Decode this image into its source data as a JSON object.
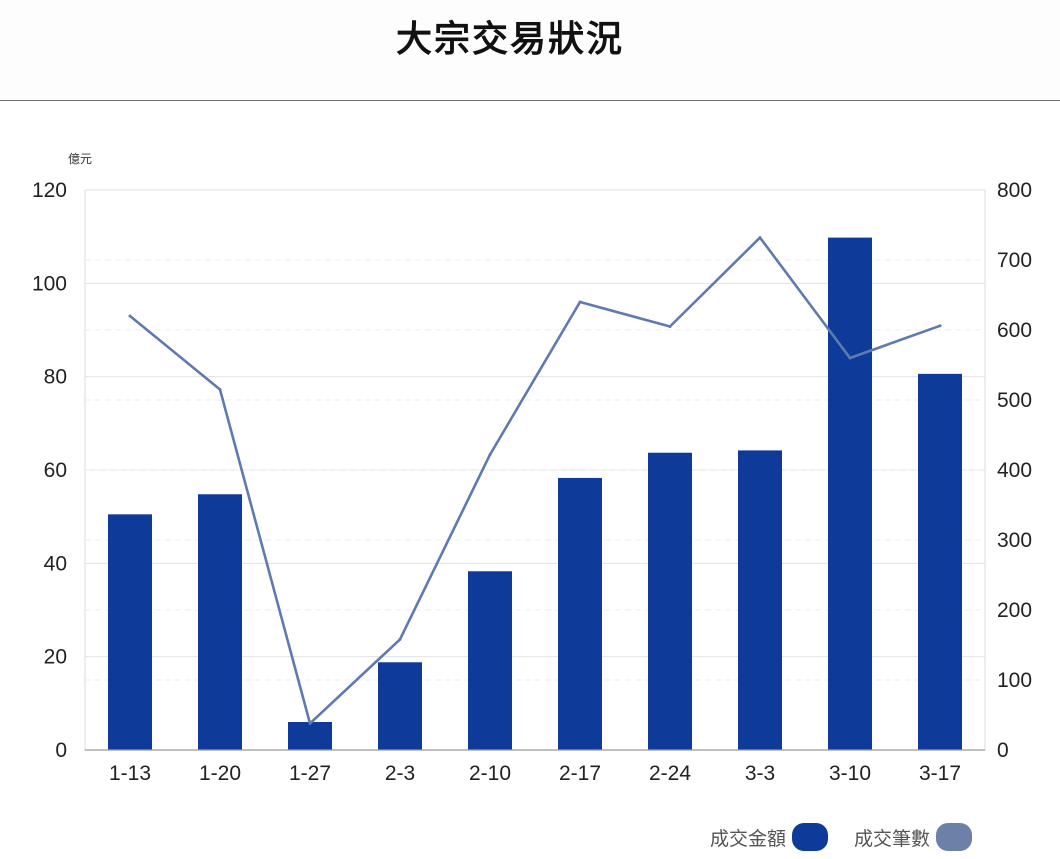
{
  "page": {
    "title": "大宗交易狀況"
  },
  "chart_data": {
    "type": "bar",
    "title": "大宗交易狀況",
    "categories": [
      "1-13",
      "1-20",
      "1-27",
      "2-3",
      "2-10",
      "2-17",
      "2-24",
      "3-3",
      "3-10",
      "3-17"
    ],
    "y_unit": "億元",
    "ylim": [
      0,
      120
    ],
    "y_ticks": [
      0,
      20,
      40,
      60,
      80,
      100,
      120
    ],
    "y2lim": [
      0,
      800
    ],
    "y2_ticks": [
      0,
      100,
      200,
      300,
      400,
      500,
      600,
      700,
      800
    ],
    "series": [
      {
        "name": "成交金額",
        "type": "bar",
        "axis": "left",
        "color": "#0e3a9a",
        "values": [
          50.5,
          54.8,
          6.0,
          18.8,
          38.3,
          58.3,
          63.7,
          64.2,
          109.8,
          80.6
        ]
      },
      {
        "name": "成交筆數",
        "type": "line",
        "axis": "right",
        "color": "#5f7ab0",
        "legend_color": "#6d80a8",
        "values": [
          620,
          515,
          38,
          158,
          422,
          640,
          605,
          732,
          560,
          606
        ]
      }
    ],
    "grid": true,
    "legend": "bottom-right"
  }
}
